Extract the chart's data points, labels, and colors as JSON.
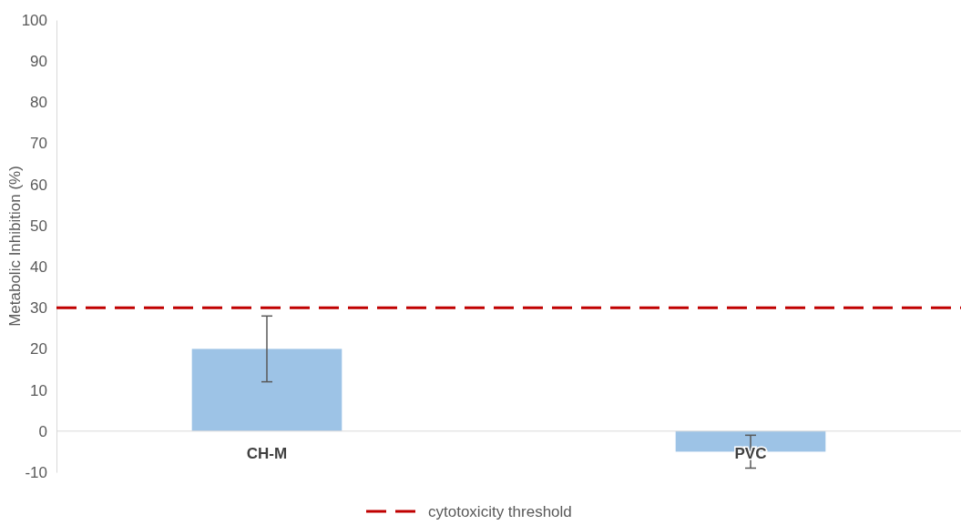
{
  "chart_data": {
    "type": "bar",
    "ylabel": "Metabolic Inhibition (%)",
    "categories": [
      "CH-M",
      "PVC"
    ],
    "series": [
      {
        "color": "#9dc3e6",
        "values": [
          20,
          -5
        ],
        "errors": [
          8,
          4
        ]
      }
    ],
    "ylim": [
      -10,
      100
    ],
    "yticks": [
      -10,
      0,
      10,
      20,
      30,
      40,
      50,
      60,
      70,
      80,
      90,
      100
    ],
    "ref_lines": [
      {
        "axis": "y",
        "value": 30,
        "label": "cytotoxicity threshold",
        "color": "#c00000",
        "line_style": "dashed"
      }
    ],
    "legend": "bottom",
    "grid": false
  }
}
